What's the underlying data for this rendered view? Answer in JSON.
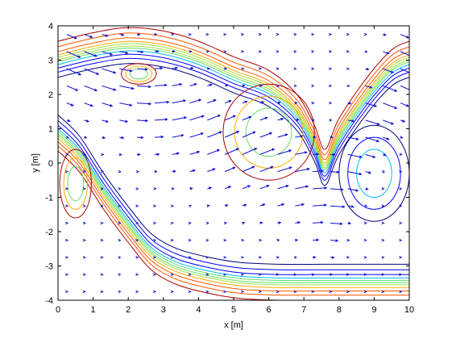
{
  "chart_data": {
    "type": "contour",
    "xlabel": "x [m]",
    "ylabel": "y [m]",
    "xlim": [
      0,
      10
    ],
    "ylim": [
      -4,
      4
    ],
    "xticks": [
      0,
      1,
      2,
      3,
      4,
      5,
      6,
      7,
      8,
      9,
      10
    ],
    "yticks": [
      4,
      3,
      2,
      1,
      0,
      -1,
      -2,
      -3,
      -4
    ],
    "grid": false,
    "colors": {
      "background": "#ffffff",
      "axes": "#000000",
      "vectors": "#1010d0",
      "contour_levels": [
        "#00007f",
        "#0000ff",
        "#00bfff",
        "#66dd66",
        "#a0e040",
        "#ffaa00",
        "#ff5500",
        "#aa0000"
      ]
    },
    "series": [
      {
        "values": [
          [
            0.0,
            3.05
          ],
          [
            1.0,
            3.3
          ],
          [
            2.0,
            3.45
          ],
          [
            3.0,
            3.35
          ],
          [
            4.0,
            3.05
          ],
          [
            5.0,
            2.6
          ],
          [
            6.0,
            2.2
          ],
          [
            6.8,
            1.5
          ],
          [
            7.3,
            0.6
          ],
          [
            7.6,
            -0.1
          ],
          [
            8.0,
            0.8
          ],
          [
            8.8,
            2.0
          ],
          [
            9.5,
            2.8
          ],
          [
            10.0,
            3.05
          ]
        ]
      },
      {
        "values": [
          [
            0.0,
            0.9
          ],
          [
            0.6,
            0.3
          ],
          [
            1.3,
            -0.8
          ],
          [
            2.1,
            -1.9
          ],
          [
            2.7,
            -2.6
          ],
          [
            3.4,
            -3.0
          ],
          [
            4.3,
            -3.25
          ],
          [
            5.2,
            -3.4
          ],
          [
            6.3,
            -3.45
          ],
          [
            7.6,
            -3.45
          ],
          [
            8.8,
            -3.45
          ],
          [
            10.0,
            -3.45
          ]
        ]
      }
    ],
    "vector_field": "velocity arrows"
  }
}
